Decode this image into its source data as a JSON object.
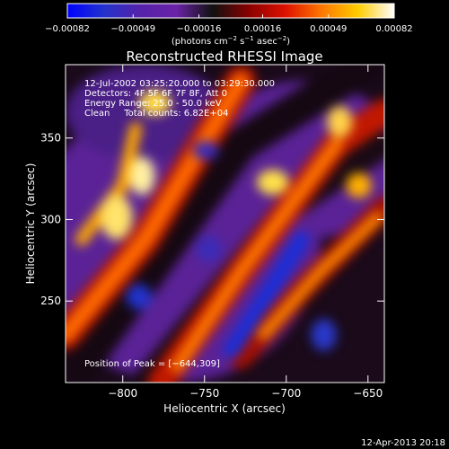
{
  "chart_data": {
    "type": "heatmap",
    "title": "Reconstructed RHESSI Image",
    "xlabel": "Heliocentric X (arcsec)",
    "ylabel": "Heliocentric Y (arcsec)",
    "xlim": [
      -835,
      -640
    ],
    "ylim": [
      200,
      395
    ],
    "x_ticks": [
      {
        "value": -800,
        "label": "−800"
      },
      {
        "value": -750,
        "label": "−750"
      },
      {
        "value": -700,
        "label": "−700"
      },
      {
        "value": -650,
        "label": "−650"
      }
    ],
    "y_ticks": [
      {
        "value": 250,
        "label": "250"
      },
      {
        "value": 300,
        "label": "300"
      },
      {
        "value": 350,
        "label": "350"
      }
    ],
    "colorbar": {
      "min": -0.00082,
      "max": 0.00082,
      "tick_values": [
        -0.00082,
        -0.00049,
        -0.00016,
        0.00016,
        0.00049,
        0.00082
      ],
      "tick_labels": [
        "−0.00082",
        "−0.00049",
        "−0.00016",
        "0.00016",
        "0.00049",
        "0.00082"
      ],
      "units_text": "(photons cm",
      "units_exp1": "−2",
      "units_mid": " s",
      "units_exp2": "−1",
      "units_end": " asec",
      "units_exp3": "−2",
      "units_close": ")",
      "colormap_stops": [
        "#0000ff",
        "#2233cc",
        "#5522aa",
        "#6a22a8",
        "#111111",
        "#8a0000",
        "#dd1100",
        "#ff7700",
        "#ffcc00",
        "#ffffff"
      ]
    },
    "annotations": [
      "12-Jul-2002 03:25:20.000 to 03:29:30.000",
      "Detectors: 4F 5F 6F 7F 8F, Att 0",
      "Energy Range: 25.0 - 50.0 keV",
      "Clean     Total counts: 6.82E+04"
    ],
    "peak_label": "Position of Peak = [−644,309]",
    "peak": {
      "x": -644,
      "y": 309
    }
  },
  "footer": {
    "timestamp": "12-Apr-2013 20:18"
  }
}
